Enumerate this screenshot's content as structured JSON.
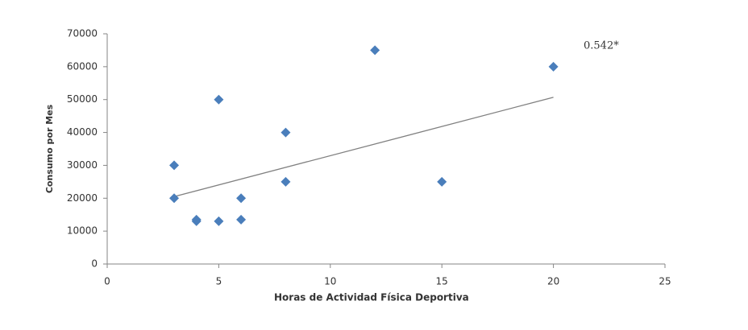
{
  "chart_data": {
    "type": "scatter",
    "x_label": "Horas de Actividad Física Deportiva",
    "y_label": "Consumo por Mes",
    "annotation": "0.542*",
    "series": [
      {
        "color": "#4a7ebb",
        "x": [
          3,
          3,
          4,
          4,
          5,
          5,
          6,
          6,
          8,
          8,
          12,
          15,
          20
        ],
        "values": [
          30000,
          20000,
          13500,
          13000,
          50000,
          13000,
          20000,
          13500,
          40000,
          25000,
          65000,
          25000,
          60000
        ]
      }
    ],
    "trendline": {
      "color": "#808080",
      "x": [
        3,
        20
      ],
      "values": [
        20500,
        50700
      ]
    },
    "xlim": [
      0,
      25
    ],
    "xticks": [
      0,
      5,
      10,
      15,
      20,
      25
    ],
    "ylim": [
      0,
      70000
    ],
    "yticks": [
      0,
      10000,
      20000,
      30000,
      40000,
      50000,
      60000,
      70000
    ],
    "grid": false
  }
}
